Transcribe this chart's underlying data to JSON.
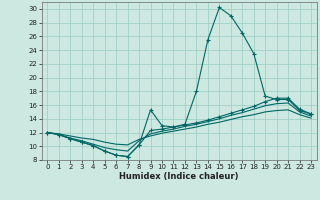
{
  "xlabel": "Humidex (Indice chaleur)",
  "bg_color": "#cce8e0",
  "grid_color": "#99ccc0",
  "line_color": "#006666",
  "xlim": [
    -0.5,
    23.5
  ],
  "ylim": [
    8,
    31
  ],
  "yticks": [
    8,
    10,
    12,
    14,
    16,
    18,
    20,
    22,
    24,
    26,
    28,
    30
  ],
  "xticks": [
    0,
    1,
    2,
    3,
    4,
    5,
    6,
    7,
    8,
    9,
    10,
    11,
    12,
    13,
    14,
    15,
    16,
    17,
    18,
    19,
    20,
    21,
    22,
    23
  ],
  "curve1_x": [
    0,
    1,
    2,
    3,
    4,
    5,
    6,
    7,
    8,
    9,
    10,
    11,
    12,
    13,
    14,
    15,
    16,
    17,
    18,
    19,
    20,
    21,
    22,
    23
  ],
  "curve1_y": [
    12.0,
    11.7,
    11.1,
    10.6,
    10.1,
    9.3,
    8.7,
    8.5,
    10.2,
    15.3,
    13.0,
    12.8,
    13.2,
    18.0,
    25.5,
    30.2,
    29.0,
    26.5,
    23.5,
    17.3,
    16.8,
    16.8,
    15.2,
    14.7
  ],
  "curve2_x": [
    0,
    1,
    2,
    3,
    4,
    5,
    6,
    7,
    8,
    9,
    10,
    11,
    12,
    13,
    14,
    15,
    16,
    17,
    18,
    19,
    20,
    21,
    22,
    23
  ],
  "curve2_y": [
    12.0,
    11.7,
    11.1,
    10.6,
    10.1,
    9.3,
    8.7,
    8.5,
    10.2,
    12.3,
    12.5,
    12.8,
    13.1,
    13.4,
    13.8,
    14.3,
    14.8,
    15.3,
    15.8,
    16.5,
    17.0,
    17.0,
    15.4,
    14.7
  ],
  "curve3_x": [
    0,
    1,
    2,
    3,
    4,
    5,
    6,
    7,
    8,
    9,
    10,
    11,
    12,
    13,
    14,
    15,
    16,
    17,
    18,
    19,
    20,
    21,
    22,
    23
  ],
  "curve3_y": [
    12.0,
    11.7,
    11.2,
    10.8,
    10.3,
    9.8,
    9.5,
    9.3,
    10.8,
    11.8,
    12.2,
    12.5,
    12.9,
    13.2,
    13.6,
    14.0,
    14.5,
    14.9,
    15.4,
    15.9,
    16.2,
    16.3,
    15.0,
    14.4
  ],
  "curve4_x": [
    0,
    1,
    2,
    3,
    4,
    5,
    6,
    7,
    8,
    9,
    10,
    11,
    12,
    13,
    14,
    15,
    16,
    17,
    18,
    19,
    20,
    21,
    22,
    23
  ],
  "curve4_y": [
    12.0,
    11.8,
    11.5,
    11.2,
    11.0,
    10.6,
    10.3,
    10.2,
    11.0,
    11.5,
    11.9,
    12.2,
    12.5,
    12.8,
    13.2,
    13.5,
    13.9,
    14.3,
    14.6,
    15.0,
    15.2,
    15.3,
    14.6,
    14.1
  ]
}
